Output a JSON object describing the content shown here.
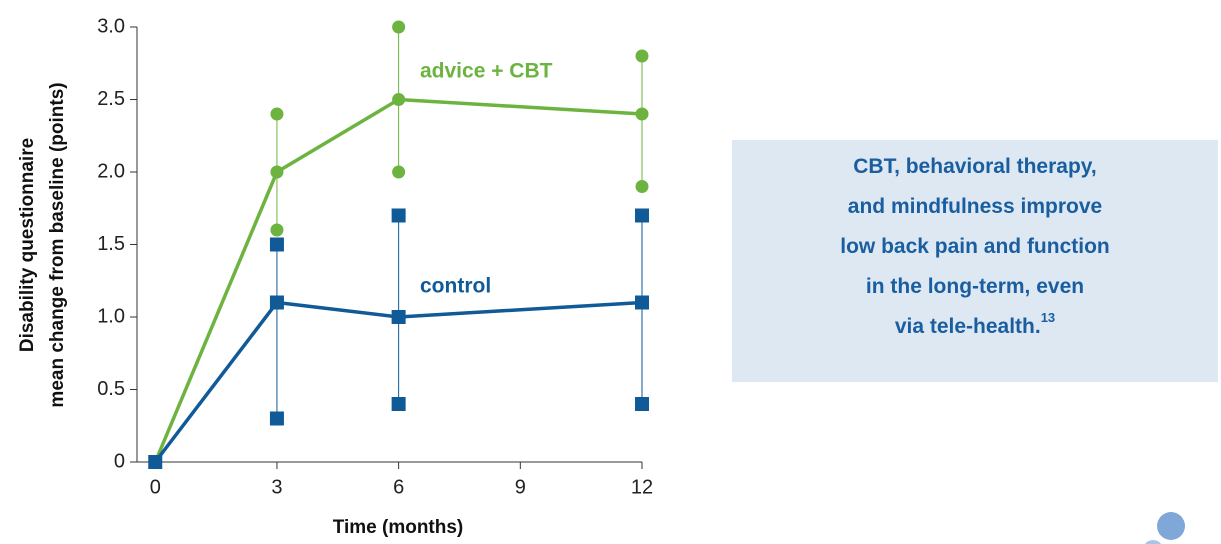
{
  "chart_data": {
    "type": "line",
    "x_label": "Time (months)",
    "y_label": [
      "Disability questionnaire",
      "mean change from baseline (points)"
    ],
    "x": [
      0,
      3,
      6,
      12
    ],
    "series": [
      {
        "name": "advice + CBT",
        "color": "#6cb33f",
        "marker": "circle",
        "values": [
          0,
          2.0,
          2.5,
          2.4
        ],
        "low": [
          null,
          1.6,
          2.0,
          1.9
        ],
        "high": [
          null,
          2.4,
          3.0,
          2.8
        ]
      },
      {
        "name": "control",
        "color": "#0f5a97",
        "marker": "square",
        "values": [
          0,
          1.1,
          1.0,
          1.1
        ],
        "low": [
          null,
          0.3,
          0.4,
          0.4
        ],
        "high": [
          null,
          1.5,
          1.7,
          1.7
        ]
      }
    ],
    "xlim": [
      -0.45,
      12
    ],
    "xticks": [
      0,
      3,
      6,
      9,
      12
    ],
    "ylim": [
      0,
      3
    ],
    "yticks": [
      0,
      0.5,
      {
        "value": 1,
        "label": "1.0"
      },
      1.5,
      {
        "value": 2,
        "label": "2.0"
      },
      2.5,
      {
        "value": 3,
        "label": "3.0"
      }
    ]
  },
  "callout": {
    "lines": [
      "CBT, behavioral therapy,",
      "and mindfulness improve",
      "low back pain and function",
      "in the long-term, even",
      "via tele-health."
    ],
    "footnote": "13"
  }
}
